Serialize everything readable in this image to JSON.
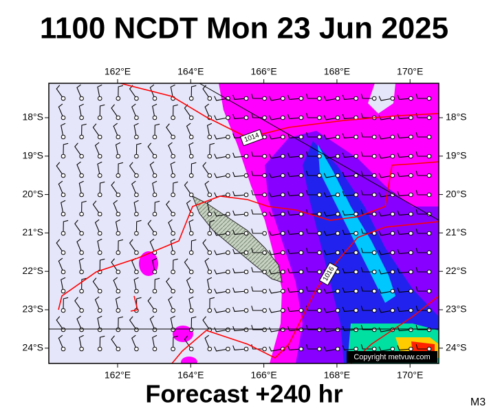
{
  "header": {
    "title": "1100 NCDT Mon 23 Jun 2025"
  },
  "map": {
    "lon_labels": [
      "162°E",
      "164°E",
      "166°E",
      "168°E",
      "170°E"
    ],
    "lat_labels": [
      "18°S",
      "19°S",
      "20°S",
      "21°S",
      "22°S",
      "23°S",
      "24°S"
    ],
    "isobar_labels": [
      "1014",
      "1016"
    ],
    "copyright": "Copyright metvuw.com"
  },
  "footer": {
    "forecast": "Forecast +240 hr",
    "code": "M3"
  }
}
